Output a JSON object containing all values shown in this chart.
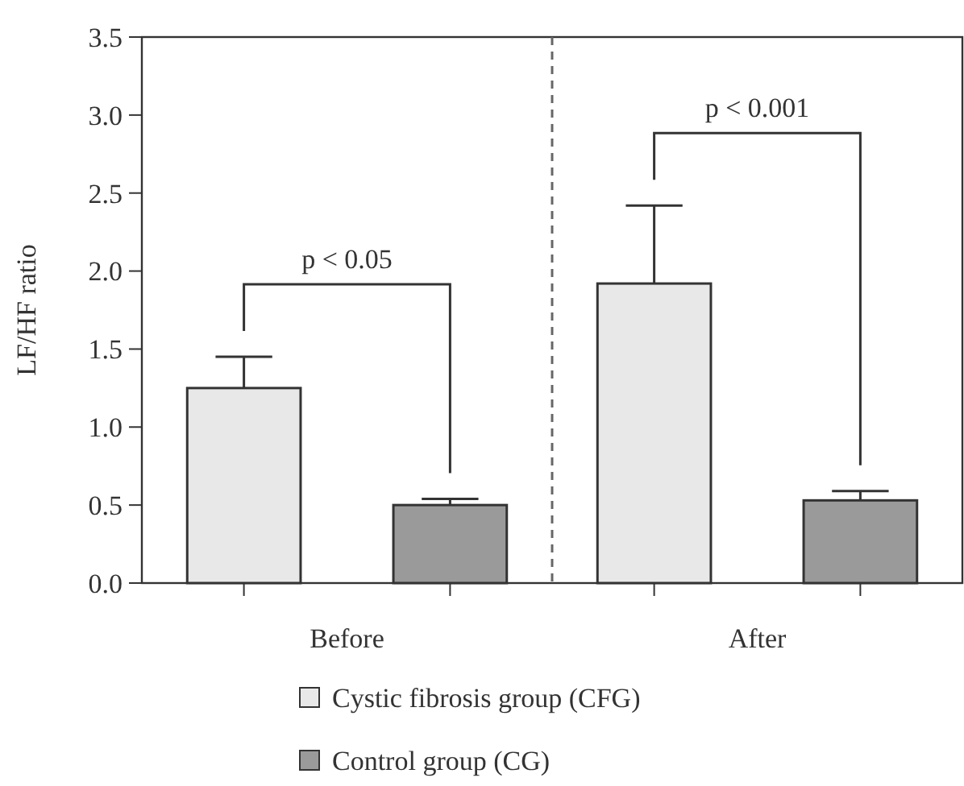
{
  "chart_data": {
    "type": "bar",
    "ylabel": "LF/HF ratio",
    "categories": [
      "Before",
      "After"
    ],
    "series": [
      {
        "name": "Cystic fibrosis group (CFG)",
        "color": "#e8e8e8",
        "values": [
          1.25,
          1.92
        ],
        "errors": [
          0.2,
          0.5
        ]
      },
      {
        "name": "Control group (CG)",
        "color": "#9a9a9a",
        "values": [
          0.5,
          0.53
        ],
        "errors": [
          0.04,
          0.06
        ]
      }
    ],
    "ylim": [
      0,
      3.5
    ],
    "yticks": [
      {
        "value": 0,
        "label": "0.0"
      },
      {
        "value": 0.5,
        "label": "0.5"
      },
      {
        "value": 1,
        "label": "1.0"
      },
      {
        "value": 1.5,
        "label": "1.5"
      },
      {
        "value": 2,
        "label": "2.0"
      },
      {
        "value": 2.5,
        "label": "2.5"
      },
      {
        "value": 3,
        "label": "3.0"
      },
      {
        "value": 3.5,
        "label": "3.5"
      }
    ],
    "annotations": [
      "p < 0.05",
      "p < 0.001"
    ],
    "legend": "bottom",
    "grid": false
  }
}
